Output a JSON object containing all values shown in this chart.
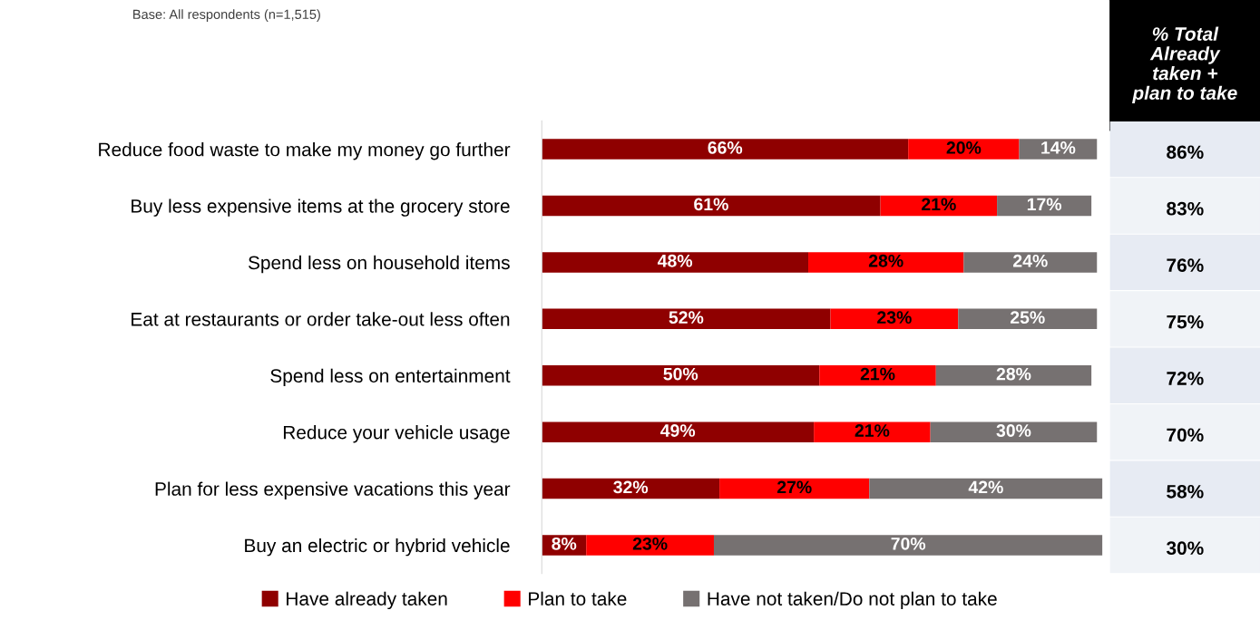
{
  "chart_data": {
    "type": "bar",
    "orientation": "horizontal",
    "stacked": true,
    "legend": "bottom",
    "grid": false,
    "categories": [
      "Reduce food waste to make my money go further",
      "Buy less expensive items at the grocery store",
      "Spend less on household items",
      "Eat at restaurants or order take-out less often",
      "Spend less on entertainment",
      "Reduce your vehicle usage",
      "Plan for less expensive vacations this year",
      "Buy an electric or hybrid vehicle"
    ],
    "series": [
      {
        "name": "Have already taken",
        "color": "#8f0000",
        "values": [
          66,
          61,
          48,
          52,
          50,
          49,
          32,
          8
        ],
        "value_labels": [
          "66%",
          "61%",
          "48%",
          "52%",
          "50%",
          "49%",
          "32%",
          "8%"
        ]
      },
      {
        "name": "Plan to take",
        "color": "#ff0000",
        "values": [
          20,
          21,
          28,
          23,
          21,
          21,
          27,
          23
        ],
        "value_labels": [
          "20%",
          "21%",
          "28%",
          "23%",
          "21%",
          "21%",
          "27%",
          "23%"
        ]
      },
      {
        "name": "Have not taken/Do not plan to take",
        "color": "#767171",
        "values": [
          14,
          17,
          24,
          25,
          28,
          30,
          42,
          70
        ],
        "value_labels": [
          "14%",
          "17%",
          "24%",
          "25%",
          "28%",
          "30%",
          "42%",
          "70%"
        ]
      }
    ],
    "annotations": [
      "Base: All respondents (n=1,515)",
      "% Total\nAlready\ntaken +\nplan to take",
      "86%",
      "83%",
      "76%",
      "75%",
      "72%",
      "70%",
      "58%",
      "30%"
    ]
  }
}
